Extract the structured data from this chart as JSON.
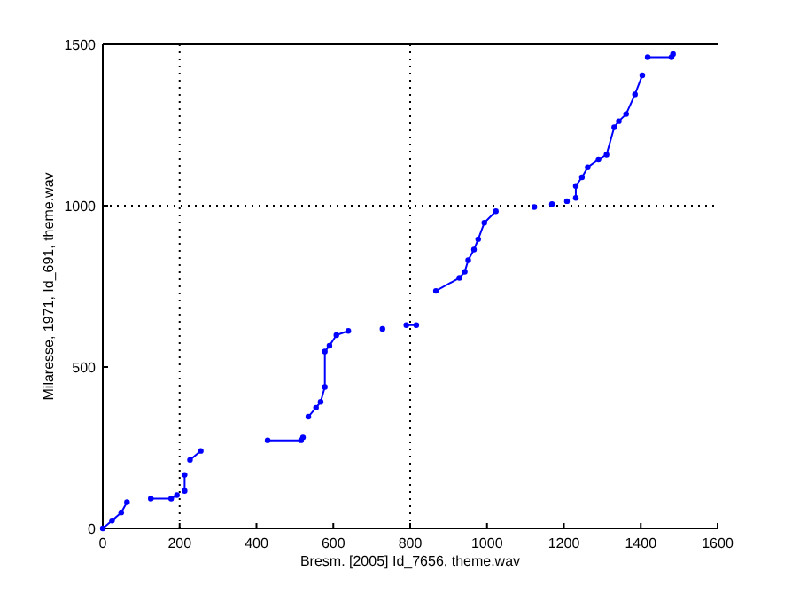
{
  "chart_data": {
    "type": "line",
    "xlabel": "Bresm. [2005] Id_7656, theme.wav",
    "ylabel": "Milaresse, 1971, Id_691, theme.wav",
    "series": [
      {
        "color": "#0000ff",
        "x": [
          0,
          24,
          48,
          63,
          null,
          125,
          178,
          193,
          null,
          213,
          213,
          null,
          227,
          255,
          null,
          429,
          516,
          521,
          null,
          535,
          555,
          567,
          578,
          578,
          590,
          608,
          639,
          null,
          728,
          null,
          790,
          816,
          null,
          867,
          928,
          942,
          951,
          966,
          977,
          993,
          1023,
          null,
          1123,
          null,
          1169,
          null,
          1208,
          null,
          1231,
          1231,
          1247,
          1262,
          1290,
          1311,
          1331,
          1343,
          1362,
          1385,
          1404,
          null,
          1418,
          1480,
          1484
        ],
        "values": [
          0,
          24,
          49,
          81,
          null,
          92,
          92,
          103,
          null,
          116,
          166,
          null,
          212,
          240,
          null,
          273,
          273,
          282,
          null,
          346,
          374,
          392,
          438,
          548,
          566,
          599,
          612,
          null,
          618,
          null,
          630,
          630,
          null,
          736,
          776,
          795,
          831,
          864,
          896,
          947,
          983,
          null,
          996,
          null,
          1005,
          null,
          1014,
          null,
          1024,
          1061,
          1088,
          1119,
          1143,
          1158,
          1243,
          1262,
          1284,
          1345,
          1404,
          null,
          1460,
          1460,
          1470
        ]
      }
    ],
    "xlim": [
      0,
      1600
    ],
    "ylim": [
      0,
      1500
    ],
    "xticks": [
      0,
      200,
      400,
      600,
      800,
      1000,
      1200,
      1400,
      1600
    ],
    "yticks": [
      0,
      500,
      1000,
      1500
    ],
    "grid": false,
    "marker": "circle",
    "line_style": "solid",
    "ref_lines": [
      {
        "axis": "x",
        "value": 200,
        "color": "#000000",
        "line_style": "dotted"
      },
      {
        "axis": "x",
        "value": 800,
        "color": "#000000",
        "line_style": "dotted"
      },
      {
        "axis": "y",
        "value": 1000,
        "color": "#000000",
        "line_style": "dotted"
      }
    ]
  }
}
